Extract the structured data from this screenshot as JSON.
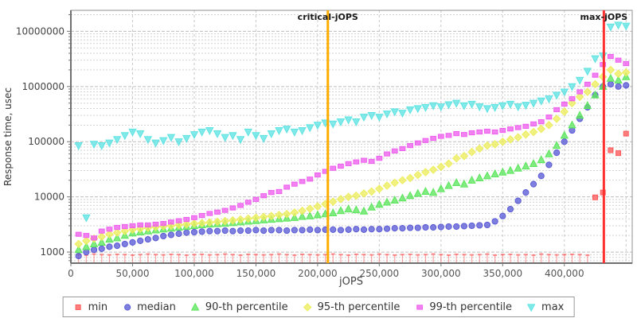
{
  "chart_data": {
    "type": "scatter",
    "title": "",
    "xlabel": "jOPS",
    "ylabel": "Response time, usec",
    "y_scale": "log",
    "xlim": [
      0,
      455000
    ],
    "ylim": [
      630,
      24000000
    ],
    "grid": true,
    "legend_position": "bottom",
    "x_ticks": [
      {
        "value": 0,
        "label": "0"
      },
      {
        "value": 50000,
        "label": "50,000"
      },
      {
        "value": 100000,
        "label": "100,000"
      },
      {
        "value": 150000,
        "label": "150,000"
      },
      {
        "value": 200000,
        "label": "200,000"
      },
      {
        "value": 250000,
        "label": "250,000"
      },
      {
        "value": 300000,
        "label": "300,000"
      },
      {
        "value": 350000,
        "label": "350,000"
      },
      {
        "value": 400000,
        "label": "400,000"
      }
    ],
    "y_ticks": [
      {
        "value": 1000,
        "label": "1000"
      },
      {
        "value": 10000,
        "label": "10000"
      },
      {
        "value": 100000,
        "label": "100000"
      },
      {
        "value": 1000000,
        "label": "1000000"
      },
      {
        "value": 10000000,
        "label": "10000000"
      }
    ],
    "annotations": [
      {
        "label": "critical-jOPS",
        "x": 208300,
        "color": "#FFAE00"
      },
      {
        "label": "max-jOPS",
        "x": 432000,
        "color": "#FF3030"
      }
    ],
    "x": [
      6250,
      12500,
      18750,
      25000,
      31250,
      37500,
      43750,
      50000,
      56250,
      62500,
      68750,
      75000,
      81250,
      87500,
      93750,
      100000,
      106250,
      112500,
      118750,
      125000,
      131250,
      137500,
      143750,
      150000,
      156250,
      162500,
      168750,
      175000,
      181250,
      187500,
      193750,
      200000,
      206250,
      212500,
      218750,
      225000,
      231250,
      237500,
      243750,
      250000,
      256250,
      262500,
      268750,
      275000,
      281250,
      287500,
      293750,
      300000,
      306250,
      312500,
      318750,
      325000,
      331250,
      337500,
      343750,
      350000,
      356250,
      362500,
      368750,
      375000,
      381250,
      387500,
      393750,
      400000,
      406250,
      412500,
      418750,
      425000,
      431250,
      437500,
      443750,
      450000
    ],
    "series": [
      {
        "name": "min",
        "marker": "square",
        "color": "#FF5A5A",
        "values": [
          900,
          880,
          920,
          900,
          890,
          910,
          900,
          880,
          900,
          920,
          900,
          890,
          910,
          900,
          880,
          900,
          910,
          890,
          900,
          920,
          900,
          880,
          910,
          900,
          890,
          900,
          920,
          900,
          880,
          910,
          900,
          890,
          900,
          920,
          900,
          880,
          910,
          900,
          890,
          920,
          900,
          880,
          900,
          910,
          890,
          900,
          920,
          900,
          880,
          910,
          900,
          890,
          900,
          920,
          880,
          900,
          910,
          890,
          900,
          880,
          920,
          900,
          890,
          900,
          910,
          900,
          880,
          9800,
          12000,
          70000,
          62000,
          140000
        ]
      },
      {
        "name": "median",
        "marker": "circle",
        "color": "#5B5BD6",
        "values": [
          850,
          1000,
          1100,
          1150,
          1250,
          1300,
          1400,
          1500,
          1600,
          1700,
          1800,
          1950,
          2050,
          2150,
          2250,
          2300,
          2350,
          2400,
          2400,
          2450,
          2400,
          2450,
          2450,
          2500,
          2450,
          2500,
          2500,
          2450,
          2500,
          2500,
          2550,
          2500,
          2550,
          2550,
          2500,
          2550,
          2600,
          2550,
          2600,
          2600,
          2650,
          2700,
          2700,
          2750,
          2750,
          2800,
          2800,
          2850,
          2900,
          2900,
          2950,
          3000,
          3050,
          3100,
          3600,
          4500,
          6000,
          8500,
          12000,
          17000,
          24000,
          38000,
          63000,
          100000,
          160000,
          260000,
          420000,
          700000,
          1000000,
          1100000,
          1000000,
          1050000
        ]
      },
      {
        "name": "90-th percentile",
        "marker": "triangle-up",
        "color": "#5CE65C",
        "values": [
          1100,
          1250,
          1400,
          1500,
          1700,
          1800,
          2000,
          2200,
          2300,
          2400,
          2500,
          2600,
          2700,
          2800,
          2900,
          3000,
          3100,
          3200,
          3250,
          3300,
          3400,
          3500,
          3600,
          3700,
          3800,
          3900,
          4000,
          4100,
          4200,
          4400,
          4500,
          4700,
          4900,
          5100,
          5600,
          6000,
          5800,
          5500,
          6500,
          7300,
          8000,
          8700,
          9500,
          10500,
          11500,
          12500,
          12000,
          14000,
          16000,
          18000,
          17000,
          20000,
          22000,
          24000,
          26000,
          28000,
          30000,
          33000,
          36000,
          40000,
          47000,
          60000,
          85000,
          130000,
          200000,
          300000,
          450000,
          700000,
          1000000,
          1400000,
          1300000,
          1500000
        ]
      },
      {
        "name": "95-th percentile",
        "marker": "diamond",
        "color": "#EDED5E",
        "values": [
          1400,
          1600,
          1750,
          1900,
          2100,
          2250,
          2400,
          2550,
          2650,
          2750,
          2850,
          2950,
          3000,
          3100,
          3200,
          3300,
          3350,
          3450,
          3550,
          3650,
          3750,
          3900,
          4050,
          4200,
          4350,
          4500,
          4700,
          4900,
          5200,
          5600,
          6100,
          6700,
          7400,
          8200,
          9100,
          10000,
          10500,
          11500,
          12500,
          14000,
          16000,
          18000,
          20000,
          22000,
          25000,
          28000,
          31000,
          35000,
          40000,
          50000,
          55000,
          65000,
          75000,
          85000,
          90000,
          100000,
          110000,
          120000,
          135000,
          150000,
          170000,
          200000,
          260000,
          350000,
          500000,
          650000,
          800000,
          1100000,
          1500000,
          2000000,
          1700000,
          1800000
        ]
      },
      {
        "name": "99-th percentile",
        "marker": "square-wide",
        "color": "#EE5FEE",
        "values": [
          2100,
          2000,
          1800,
          2400,
          2600,
          2800,
          2900,
          3000,
          3100,
          3100,
          3200,
          3300,
          3500,
          3700,
          3900,
          4200,
          4600,
          5000,
          5300,
          5700,
          6300,
          7000,
          8000,
          9000,
          10500,
          12000,
          12500,
          15000,
          17000,
          19000,
          21000,
          25000,
          29000,
          33000,
          36000,
          40000,
          43000,
          46000,
          44000,
          50000,
          60000,
          68000,
          75000,
          85000,
          95000,
          105000,
          115000,
          125000,
          130000,
          140000,
          135000,
          145000,
          150000,
          155000,
          150000,
          160000,
          170000,
          180000,
          190000,
          210000,
          230000,
          280000,
          380000,
          480000,
          600000,
          800000,
          1100000,
          1600000,
          2500000,
          3500000,
          3000000,
          2600000
        ]
      },
      {
        "name": "max",
        "marker": "triangle-down",
        "color": "#5FE3E3",
        "values": [
          85000,
          4200,
          90000,
          85000,
          95000,
          110000,
          130000,
          150000,
          140000,
          110000,
          95000,
          105000,
          120000,
          100000,
          115000,
          135000,
          150000,
          160000,
          140000,
          120000,
          130000,
          110000,
          150000,
          130000,
          115000,
          140000,
          160000,
          170000,
          150000,
          160000,
          180000,
          200000,
          220000,
          210000,
          230000,
          250000,
          230000,
          280000,
          300000,
          280000,
          320000,
          350000,
          330000,
          380000,
          400000,
          420000,
          450000,
          430000,
          470000,
          500000,
          450000,
          480000,
          430000,
          400000,
          420000,
          450000,
          480000,
          430000,
          460000,
          500000,
          550000,
          600000,
          700000,
          800000,
          1000000,
          1300000,
          1900000,
          3200000,
          3600000,
          12000000,
          13000000,
          12500000
        ]
      }
    ]
  }
}
